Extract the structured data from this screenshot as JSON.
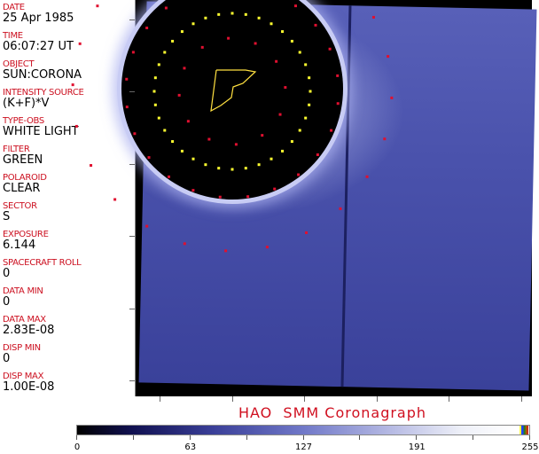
{
  "info_panel": {
    "fields": [
      {
        "label": "DATE",
        "value": "25 Apr 1985"
      },
      {
        "label": "TIME",
        "value": "06:07:27 UT"
      },
      {
        "label": "OBJECT",
        "value": "SUN:CORONA"
      },
      {
        "label": "INTENSITY SOURCE",
        "value": "(K+F)*V"
      },
      {
        "label": "TYPE-OBS",
        "value": "WHITE LIGHT"
      },
      {
        "label": "FILTER",
        "value": "GREEN"
      },
      {
        "label": "POLAROID",
        "value": "CLEAR"
      },
      {
        "label": "SECTOR",
        "value": "S"
      },
      {
        "label": "EXPOSURE",
        "value": "6.144"
      },
      {
        "label": "SPACECRAFT ROLL",
        "value": "0"
      },
      {
        "label": "DATA MIN",
        "value": "0"
      },
      {
        "label": "DATA MAX",
        "value": "2.83E-08"
      },
      {
        "label": "DISP MIN",
        "value": "0"
      },
      {
        "label": "DISP MAX",
        "value": "1.00E-08"
      }
    ]
  },
  "title": "HAO  SMM Coronagraph",
  "colorbar": {
    "ticks": [
      "0",
      "63",
      "127",
      "191",
      "255"
    ],
    "colors": {
      "low": "#000000",
      "mid": "#7078c8",
      "high": "#ffffff"
    }
  },
  "overlay_colors": {
    "grid_red": "#e01030",
    "grid_yellow": "#ffff30",
    "outline": "#ffe040"
  }
}
